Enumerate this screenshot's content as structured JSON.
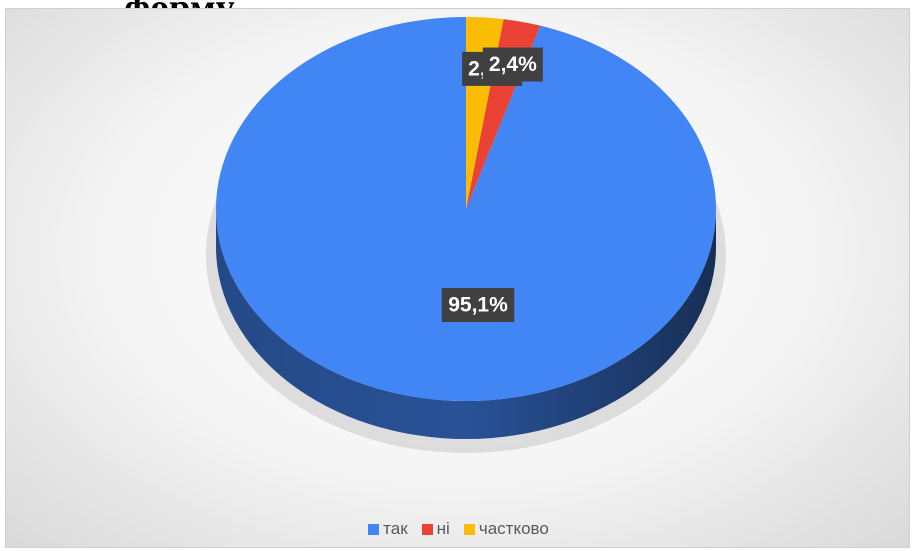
{
  "page": {
    "heading_fragment": "форму"
  },
  "colors": {
    "так": "#4285f4",
    "ні": "#ea4335",
    "частково": "#fbbc04",
    "label_box": "#404040",
    "label_text": "#ffffff"
  },
  "chart_data": {
    "type": "pie",
    "title": "",
    "categories": [
      "так",
      "ні",
      "частково"
    ],
    "values": [
      95.1,
      2.4,
      2.4
    ],
    "data_labels": [
      "95,1%",
      "2,4%",
      "2,4%"
    ],
    "three_d": true,
    "start_angle_deg": 0,
    "direction": "counterclockwise",
    "legend_position": "bottom"
  },
  "legend": {
    "items": [
      {
        "label": "так"
      },
      {
        "label": "ні"
      },
      {
        "label": "частково"
      }
    ]
  }
}
